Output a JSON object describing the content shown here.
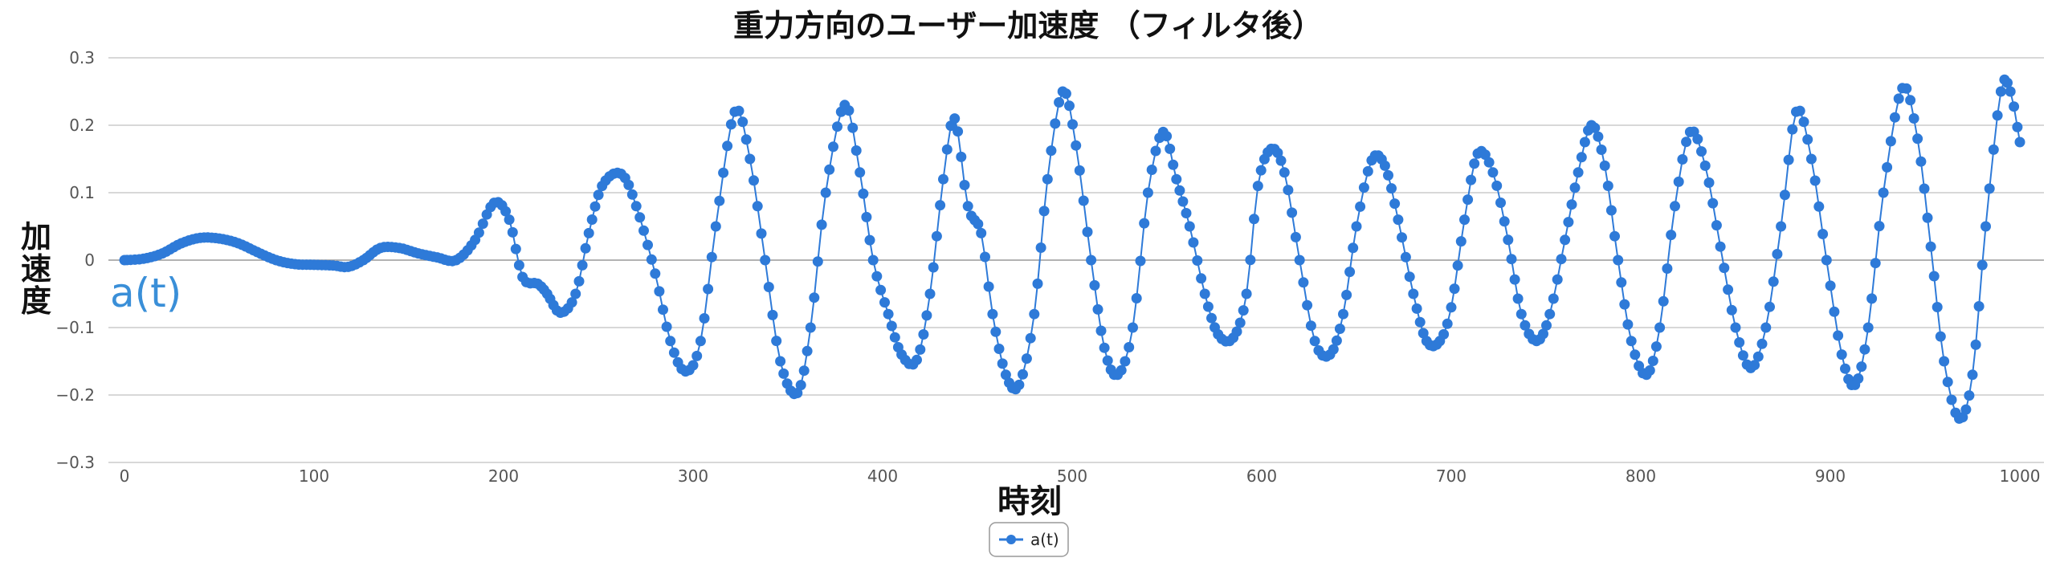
{
  "chart_data": {
    "type": "line",
    "title": "重力方向のユーザー加速度 （フィルタ後）",
    "xlabel": "時刻",
    "ylabel": "加速度",
    "xlim": [
      0,
      1000
    ],
    "ylim": [
      -0.3,
      0.3
    ],
    "x_ticks": [
      "0",
      "100",
      "200",
      "300",
      "400",
      "500",
      "600",
      "700",
      "800",
      "900",
      "1000"
    ],
    "y_ticks": [
      "0.3",
      "0.2",
      "0.1",
      "0",
      "−0.1",
      "−0.2",
      "−0.3"
    ],
    "grid": true,
    "legend_position": "bottom-center",
    "series_color": "#2e7ad8",
    "series_label_color": "#3a8fd8",
    "series": [
      {
        "name": "a(t)",
        "points": [
          [
            0,
            0.0
          ],
          [
            10,
            0.002
          ],
          [
            20,
            0.01
          ],
          [
            30,
            0.025
          ],
          [
            40,
            0.033
          ],
          [
            50,
            0.032
          ],
          [
            60,
            0.025
          ],
          [
            70,
            0.012
          ],
          [
            80,
            0.0
          ],
          [
            90,
            -0.006
          ],
          [
            100,
            -0.007
          ],
          [
            110,
            -0.008
          ],
          [
            118,
            -0.01
          ],
          [
            126,
            0.0
          ],
          [
            135,
            0.018
          ],
          [
            145,
            0.018
          ],
          [
            155,
            0.01
          ],
          [
            165,
            0.004
          ],
          [
            175,
            0.0
          ],
          [
            185,
            0.03
          ],
          [
            195,
            0.085
          ],
          [
            203,
            0.06
          ],
          [
            210,
            -0.025
          ],
          [
            218,
            -0.035
          ],
          [
            223,
            -0.05
          ],
          [
            230,
            -0.078
          ],
          [
            238,
            -0.05
          ],
          [
            245,
            0.04
          ],
          [
            252,
            0.11
          ],
          [
            262,
            0.128
          ],
          [
            270,
            0.08
          ],
          [
            280,
            -0.02
          ],
          [
            288,
            -0.12
          ],
          [
            296,
            -0.165
          ],
          [
            304,
            -0.12
          ],
          [
            312,
            0.05
          ],
          [
            322,
            0.22
          ],
          [
            330,
            0.15
          ],
          [
            338,
            0.0
          ],
          [
            346,
            -0.15
          ],
          [
            355,
            -0.197
          ],
          [
            362,
            -0.1
          ],
          [
            370,
            0.1
          ],
          [
            380,
            0.23
          ],
          [
            388,
            0.13
          ],
          [
            395,
            0.0
          ],
          [
            403,
            -0.08
          ],
          [
            410,
            -0.14
          ],
          [
            418,
            -0.148
          ],
          [
            425,
            -0.05
          ],
          [
            432,
            0.12
          ],
          [
            438,
            0.21
          ],
          [
            445,
            0.08
          ],
          [
            452,
            0.04
          ],
          [
            458,
            -0.08
          ],
          [
            465,
            -0.17
          ],
          [
            472,
            -0.185
          ],
          [
            480,
            -0.08
          ],
          [
            487,
            0.12
          ],
          [
            495,
            0.25
          ],
          [
            502,
            0.17
          ],
          [
            510,
            0.0
          ],
          [
            517,
            -0.13
          ],
          [
            524,
            -0.17
          ],
          [
            532,
            -0.1
          ],
          [
            540,
            0.1
          ],
          [
            548,
            0.19
          ],
          [
            555,
            0.12
          ],
          [
            562,
            0.05
          ],
          [
            570,
            -0.05
          ],
          [
            577,
            -0.11
          ],
          [
            585,
            -0.115
          ],
          [
            592,
            -0.05
          ],
          [
            598,
            0.11
          ],
          [
            605,
            0.165
          ],
          [
            612,
            0.13
          ],
          [
            620,
            0.0
          ],
          [
            628,
            -0.12
          ],
          [
            636,
            -0.14
          ],
          [
            643,
            -0.08
          ],
          [
            650,
            0.05
          ],
          [
            658,
            0.148
          ],
          [
            665,
            0.14
          ],
          [
            672,
            0.06
          ],
          [
            680,
            -0.05
          ],
          [
            687,
            -0.12
          ],
          [
            694,
            -0.12
          ],
          [
            700,
            -0.07
          ],
          [
            707,
            0.06
          ],
          [
            714,
            0.158
          ],
          [
            722,
            0.13
          ],
          [
            730,
            0.03
          ],
          [
            737,
            -0.08
          ],
          [
            745,
            -0.12
          ],
          [
            752,
            -0.08
          ],
          [
            760,
            0.03
          ],
          [
            767,
            0.13
          ],
          [
            774,
            0.2
          ],
          [
            781,
            0.14
          ],
          [
            788,
            0.0
          ],
          [
            795,
            -0.12
          ],
          [
            803,
            -0.17
          ],
          [
            810,
            -0.1
          ],
          [
            818,
            0.08
          ],
          [
            826,
            0.19
          ],
          [
            834,
            0.14
          ],
          [
            842,
            0.02
          ],
          [
            850,
            -0.1
          ],
          [
            858,
            -0.16
          ],
          [
            866,
            -0.1
          ],
          [
            874,
            0.05
          ],
          [
            882,
            0.22
          ],
          [
            890,
            0.15
          ],
          [
            898,
            0.0
          ],
          [
            906,
            -0.14
          ],
          [
            913,
            -0.185
          ],
          [
            920,
            -0.1
          ],
          [
            928,
            0.1
          ],
          [
            938,
            0.255
          ],
          [
            946,
            0.18
          ],
          [
            953,
            0.02
          ],
          [
            960,
            -0.15
          ],
          [
            968,
            -0.235
          ],
          [
            975,
            -0.17
          ],
          [
            982,
            0.05
          ],
          [
            990,
            0.25
          ],
          [
            995,
            0.25
          ],
          [
            1000,
            0.175
          ]
        ]
      }
    ]
  }
}
